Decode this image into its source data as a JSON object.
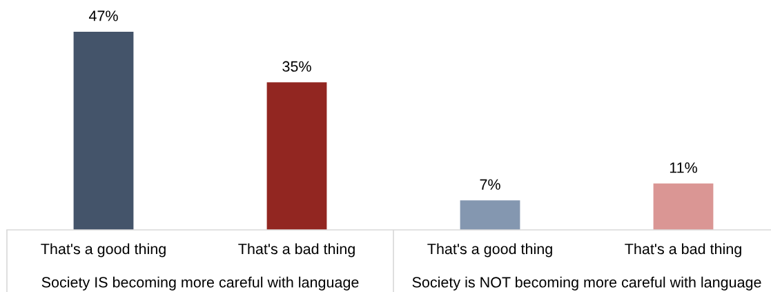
{
  "chart_data": {
    "type": "bar",
    "categories": [
      "That's a good thing",
      "That's a bad thing",
      "That's a good thing",
      "That's a bad thing"
    ],
    "values": [
      47,
      35,
      7,
      11
    ],
    "value_labels": [
      "47%",
      "35%",
      "7%",
      "11%"
    ],
    "colors": [
      "#44546a",
      "#922621",
      "#8497b0",
      "#da9694"
    ],
    "tick_labels": "x",
    "annotations": [
      "Society IS becoming more careful with language",
      "Society is NOT becoming more careful with language"
    ]
  }
}
